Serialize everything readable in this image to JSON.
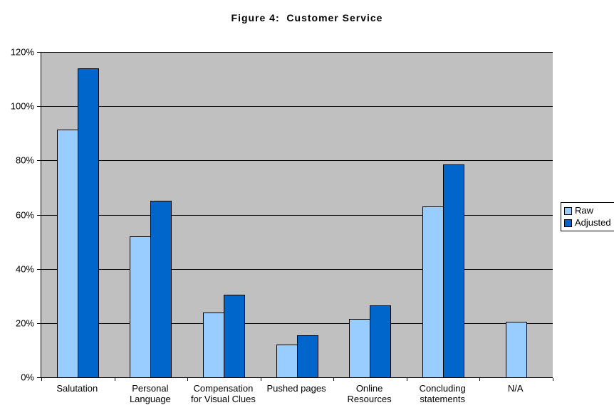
{
  "chart_data": {
    "type": "bar",
    "title": "Figure 4:  Customer Service",
    "categories": [
      "Salutation",
      "Personal Language",
      "Compensation for Visual Clues",
      "Pushed pages",
      "Online Resources",
      "Concluding statements",
      "N/A"
    ],
    "series": [
      {
        "name": "Raw",
        "color": "#99CCFF",
        "values": [
          91.5,
          52,
          24,
          12,
          21.5,
          63,
          20.5
        ]
      },
      {
        "name": "Adjusted",
        "color": "#0066CC",
        "values": [
          114,
          65,
          30.5,
          15.5,
          26.5,
          78.5,
          null
        ]
      }
    ],
    "xlabel": "",
    "ylabel": "",
    "ylim": [
      0,
      120
    ],
    "yticks": [
      "0%",
      "20%",
      "40%",
      "60%",
      "80%",
      "100%",
      "120%"
    ],
    "grid": true,
    "legend_position": "right",
    "plot_background": "#C0C0C0",
    "gridline_color": "#000000",
    "bar_border_color": "#000000"
  }
}
